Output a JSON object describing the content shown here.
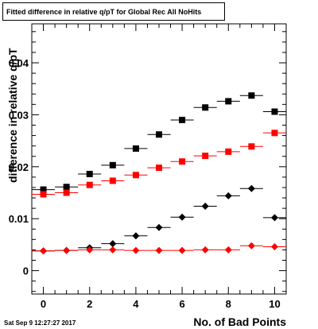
{
  "title": "Fitted difference in relative q/pT for Global Rec All NoHits",
  "timestamp": "Sat Sep  9 12:27:27 2017",
  "chart_data": {
    "type": "scatter",
    "xlabel": "No. of Bad Points",
    "ylabel": "difference in relative q/pT",
    "xlim": [
      -0.5,
      10.5
    ],
    "ylim": [
      -0.0045,
      0.0475
    ],
    "x_ticks": [
      0,
      2,
      4,
      6,
      8,
      10
    ],
    "y_ticks": [
      0,
      0.01,
      0.02,
      0.03,
      0.04
    ],
    "y_tick_labels": [
      "0",
      "0.01",
      "0.02",
      "0.03",
      "0.04"
    ],
    "grid": false,
    "series": [
      {
        "color": "#000000",
        "marker": "square",
        "x": [
          0,
          1,
          2,
          3,
          4,
          5,
          6,
          7,
          8,
          9,
          10
        ],
        "y": [
          0.0156,
          0.0161,
          0.0186,
          0.0203,
          0.0235,
          0.0262,
          0.029,
          0.0314,
          0.0326,
          0.0337,
          0.0306
        ]
      },
      {
        "color": "#ff0000",
        "marker": "square",
        "x": [
          0,
          1,
          2,
          3,
          4,
          5,
          6,
          7,
          8,
          9,
          10
        ],
        "y": [
          0.0147,
          0.015,
          0.0165,
          0.0173,
          0.0184,
          0.0198,
          0.021,
          0.0221,
          0.0229,
          0.0239,
          0.0265
        ]
      },
      {
        "color": "#000000",
        "marker": "diamond",
        "x": [
          0,
          1,
          2,
          3,
          4,
          5,
          6,
          7,
          8,
          9,
          10
        ],
        "y": [
          0.0038,
          0.0039,
          0.0044,
          0.0052,
          0.0067,
          0.0083,
          0.0103,
          0.0124,
          0.0144,
          0.0158,
          0.0102
        ]
      },
      {
        "color": "#ff0000",
        "marker": "diamond",
        "x": [
          0,
          1,
          2,
          3,
          4,
          5,
          6,
          7,
          8,
          9,
          10
        ],
        "y": [
          0.0038,
          0.0039,
          0.004,
          0.004,
          0.0039,
          0.0039,
          0.0039,
          0.004,
          0.004,
          0.0048,
          0.0046
        ]
      }
    ]
  }
}
